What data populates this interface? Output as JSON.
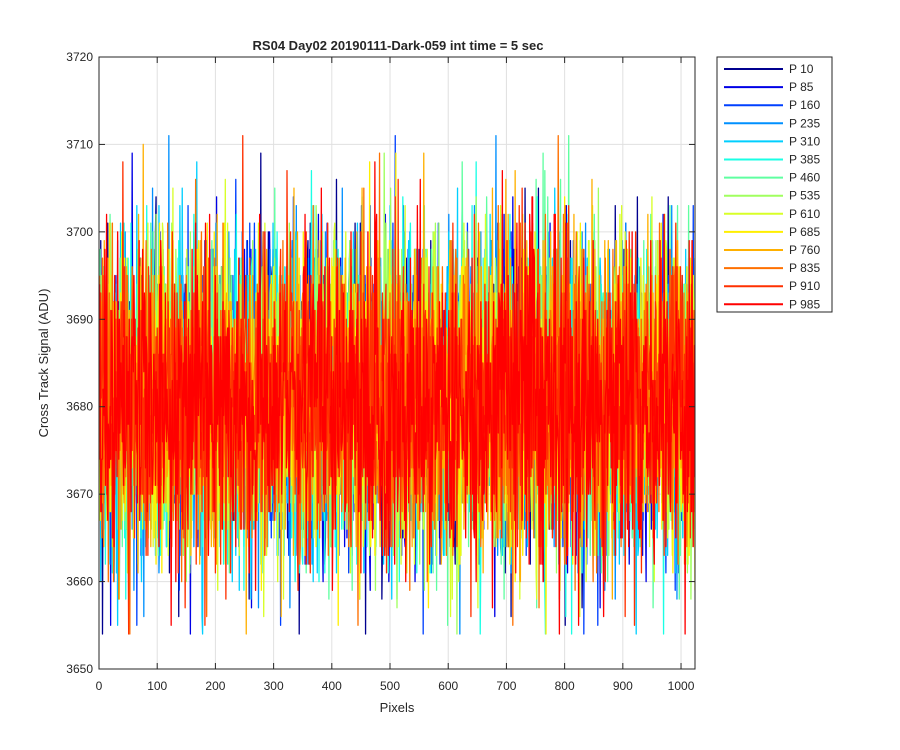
{
  "chart_data": {
    "type": "line",
    "title": "RS04 Day02 20190111-Dark-059 int time = 5 sec",
    "xlabel": "Pixels",
    "ylabel": "Cross Track Signal (ADU)",
    "xlim": [
      0,
      1024
    ],
    "ylim": [
      3650,
      3720
    ],
    "xticks": [
      0,
      100,
      200,
      300,
      400,
      500,
      600,
      700,
      800,
      900,
      1000
    ],
    "yticks": [
      3650,
      3660,
      3670,
      3680,
      3690,
      3700,
      3710,
      3720
    ],
    "grid": true,
    "legend_placement": "outside-right",
    "noise_summary": {
      "mean": 3681,
      "typical_min": 3663,
      "typical_max": 3700,
      "absolute_min": 3654,
      "absolute_max": 3711
    },
    "series": [
      {
        "name": "P 10",
        "color": "#00008f"
      },
      {
        "name": "P 85",
        "color": "#0000e6"
      },
      {
        "name": "P 160",
        "color": "#0040ff"
      },
      {
        "name": "P 235",
        "color": "#0090ff"
      },
      {
        "name": "P 310",
        "color": "#00cfff"
      },
      {
        "name": "P 385",
        "color": "#1affe5"
      },
      {
        "name": "P 460",
        "color": "#5fffa0"
      },
      {
        "name": "P 535",
        "color": "#a0ff5f"
      },
      {
        "name": "P 610",
        "color": "#d8ff28"
      },
      {
        "name": "P 685",
        "color": "#ffef00"
      },
      {
        "name": "P 760",
        "color": "#ffb000"
      },
      {
        "name": "P 835",
        "color": "#ff7000"
      },
      {
        "name": "P 910",
        "color": "#ff3000"
      },
      {
        "name": "P 985",
        "color": "#ff0000"
      }
    ]
  }
}
